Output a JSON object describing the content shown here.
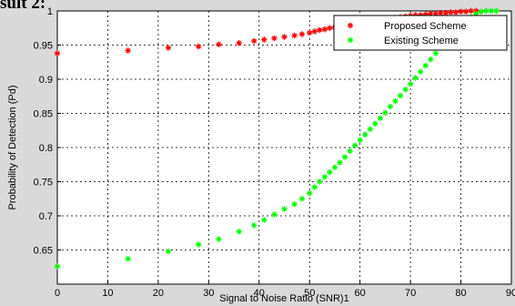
{
  "heading": "sult 2:",
  "chart_data": {
    "type": "scatter",
    "title": "",
    "xlabel": "Signal to Noise Ratio (SNR)1",
    "ylabel": "Probability of Detection (Pd)",
    "xlim": [
      0,
      90
    ],
    "ylim": [
      0.6,
      1.0
    ],
    "xticks": [
      0,
      10,
      20,
      30,
      40,
      50,
      60,
      70,
      80,
      90
    ],
    "yticks": [
      0.65,
      0.7,
      0.75,
      0.8,
      0.85,
      0.9,
      0.95,
      1
    ],
    "xtick_labels": [
      "0",
      "10",
      "20",
      "30",
      "40",
      "50",
      "60",
      "70",
      "80",
      "90"
    ],
    "ytick_labels": [
      "0.65",
      "0.7",
      "0.75",
      "0.8",
      "0.85",
      "0.9",
      "0.95",
      "1"
    ],
    "grid": true,
    "legend_position": "top-right",
    "marker": "*",
    "series": [
      {
        "name": "Proposed Scheme",
        "color": "#ff0000",
        "x": [
          0,
          14,
          22,
          28,
          32,
          36,
          39,
          41,
          43,
          45,
          47,
          48.5,
          50,
          51,
          52,
          53,
          54,
          55,
          56,
          57,
          58,
          59,
          60,
          61,
          62,
          63,
          64,
          65,
          66,
          67,
          68,
          69,
          70,
          71,
          72,
          73,
          74,
          75,
          76,
          77,
          78,
          79,
          80,
          81,
          82,
          83
        ],
        "y": [
          0.938,
          0.942,
          0.946,
          0.948,
          0.951,
          0.953,
          0.956,
          0.958,
          0.96,
          0.962,
          0.964,
          0.966,
          0.968,
          0.97,
          0.972,
          0.973,
          0.975,
          0.976,
          0.978,
          0.979,
          0.98,
          0.982,
          0.983,
          0.984,
          0.985,
          0.986,
          0.987,
          0.988,
          0.989,
          0.99,
          0.991,
          0.992,
          0.993,
          0.994,
          0.994,
          0.995,
          0.996,
          0.996,
          0.997,
          0.997,
          0.998,
          0.998,
          0.999,
          0.999,
          1.0,
          1.0
        ]
      },
      {
        "name": "Existing Scheme",
        "color": "#00ff00",
        "x": [
          0,
          14,
          22,
          28,
          32,
          36,
          39,
          41,
          43,
          45,
          47,
          48.5,
          50,
          51,
          52,
          53,
          54,
          55,
          56,
          57,
          58,
          59,
          60,
          61,
          62,
          63,
          64,
          65,
          66,
          67,
          68,
          69,
          70,
          71,
          72,
          73,
          74,
          75,
          76,
          77,
          78,
          79,
          80,
          81,
          82,
          83,
          84,
          85,
          86,
          87
        ],
        "y": [
          0.626,
          0.637,
          0.648,
          0.658,
          0.666,
          0.677,
          0.686,
          0.694,
          0.702,
          0.71,
          0.717,
          0.725,
          0.733,
          0.742,
          0.75,
          0.757,
          0.764,
          0.771,
          0.778,
          0.786,
          0.795,
          0.803,
          0.811,
          0.819,
          0.827,
          0.835,
          0.843,
          0.851,
          0.86,
          0.868,
          0.876,
          0.885,
          0.893,
          0.902,
          0.911,
          0.92,
          0.929,
          0.938,
          0.946,
          0.955,
          0.963,
          0.971,
          0.978,
          0.985,
          0.991,
          0.996,
          0.999,
          1.0,
          1.0,
          1.0
        ]
      }
    ]
  }
}
